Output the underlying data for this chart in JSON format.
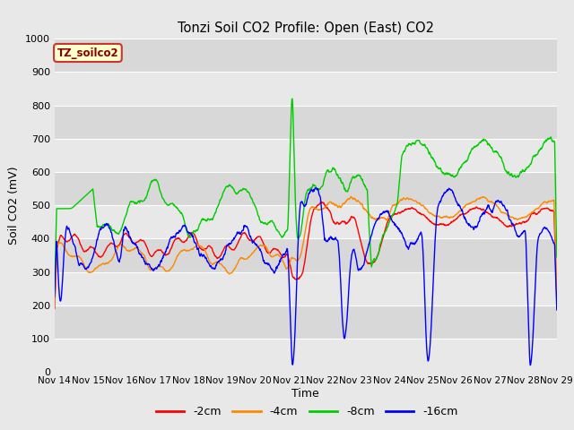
{
  "title": "Tonzi Soil CO2 Profile: Open (East) CO2",
  "ylabel": "Soil CO2 (mV)",
  "xlabel": "Time",
  "ylim": [
    0,
    1000
  ],
  "fig_facecolor": "#e8e8e8",
  "axes_facecolor": "#e0e0e0",
  "watermark_text": "TZ_soilco2",
  "watermark_bg": "#ffffcc",
  "watermark_border": "#cc3333",
  "watermark_text_color": "#880000",
  "legend_entries": [
    "-2cm",
    "-4cm",
    "-8cm",
    "-16cm"
  ],
  "line_colors": [
    "#ff0000",
    "#ff8800",
    "#00cc00",
    "#0000ff"
  ],
  "x_tick_labels": [
    "Nov 14",
    "Nov 15",
    "Nov 16",
    "Nov 17",
    "Nov 18",
    "Nov 19",
    "Nov 20",
    "Nov 21",
    "Nov 22",
    "Nov 23",
    "Nov 24",
    "Nov 25",
    "Nov 26",
    "Nov 27",
    "Nov 28",
    "Nov 29"
  ],
  "x_tick_positions": [
    0,
    24,
    48,
    72,
    96,
    120,
    144,
    168,
    192,
    216,
    240,
    264,
    288,
    312,
    336,
    360
  ],
  "yticks": [
    0,
    100,
    200,
    300,
    400,
    500,
    600,
    700,
    800,
    900,
    1000
  ]
}
